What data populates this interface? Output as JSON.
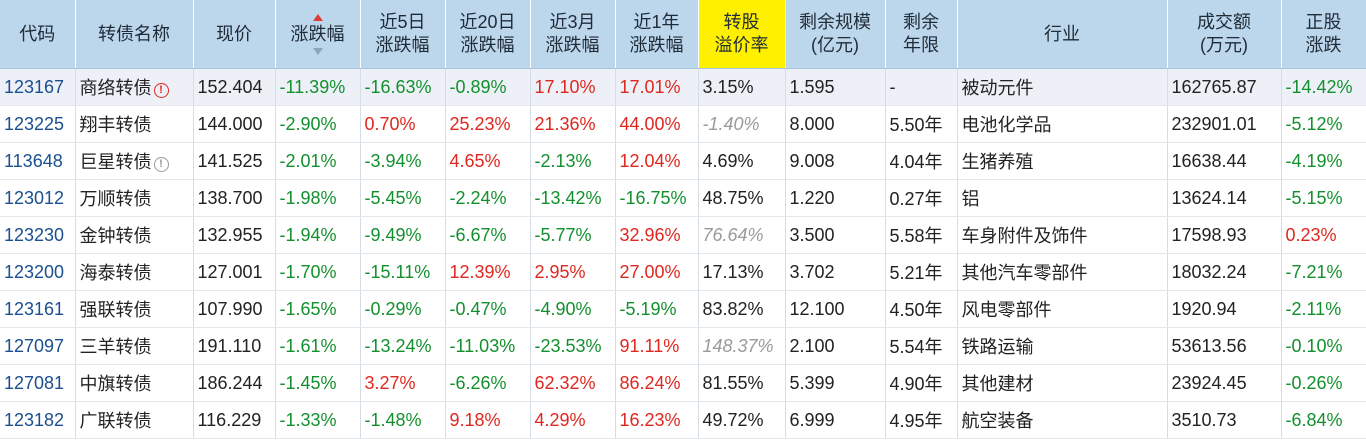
{
  "headers": [
    {
      "label": [
        "代码"
      ]
    },
    {
      "label": [
        "转债名称"
      ]
    },
    {
      "label": [
        "现价"
      ]
    },
    {
      "label": [
        "涨跌幅"
      ],
      "sorted": "desc"
    },
    {
      "label": [
        "近5日",
        "涨跌幅"
      ]
    },
    {
      "label": [
        "近20日",
        "涨跌幅"
      ]
    },
    {
      "label": [
        "近3月",
        "涨跌幅"
      ]
    },
    {
      "label": [
        "近1年",
        "涨跌幅"
      ]
    },
    {
      "label": [
        "转股",
        "溢价率"
      ],
      "highlight": true
    },
    {
      "label": [
        "剩余规模",
        "(亿元)"
      ]
    },
    {
      "label": [
        "剩余",
        "年限"
      ]
    },
    {
      "label": [
        "行业"
      ]
    },
    {
      "label": [
        "成交额",
        "(万元)"
      ]
    },
    {
      "label": [
        "正股",
        "涨跌"
      ]
    }
  ],
  "rows": [
    {
      "code": "123167",
      "name": "商络转债",
      "warn": "red",
      "price": "152.404",
      "chg": "-11.39%",
      "chg5": "-16.63%",
      "chg20": "-0.89%",
      "chg3m": "17.10%",
      "chg1y": "17.01%",
      "premium": "3.15%",
      "premium_muted": false,
      "scale": "1.595",
      "years": "-",
      "industry": "被动元件",
      "turnover": "162765.87",
      "stock_chg": "-14.42%"
    },
    {
      "code": "123225",
      "name": "翔丰转债",
      "warn": "",
      "price": "144.000",
      "chg": "-2.90%",
      "chg5": "0.70%",
      "chg20": "25.23%",
      "chg3m": "21.36%",
      "chg1y": "44.00%",
      "premium": "-1.40%",
      "premium_muted": true,
      "scale": "8.000",
      "years": "5.50年",
      "industry": "电池化学品",
      "turnover": "232901.01",
      "stock_chg": "-5.12%"
    },
    {
      "code": "113648",
      "name": "巨星转债",
      "warn": "gray",
      "price": "141.525",
      "chg": "-2.01%",
      "chg5": "-3.94%",
      "chg20": "4.65%",
      "chg3m": "-2.13%",
      "chg1y": "12.04%",
      "premium": "4.69%",
      "premium_muted": false,
      "scale": "9.008",
      "years": "4.04年",
      "industry": "生猪养殖",
      "turnover": "16638.44",
      "stock_chg": "-4.19%"
    },
    {
      "code": "123012",
      "name": "万顺转债",
      "warn": "",
      "price": "138.700",
      "chg": "-1.98%",
      "chg5": "-5.45%",
      "chg20": "-2.24%",
      "chg3m": "-13.42%",
      "chg1y": "-16.75%",
      "premium": "48.75%",
      "premium_muted": false,
      "scale": "1.220",
      "years": "0.27年",
      "industry": "铝",
      "turnover": "13624.14",
      "stock_chg": "-5.15%"
    },
    {
      "code": "123230",
      "name": "金钟转债",
      "warn": "",
      "price": "132.955",
      "chg": "-1.94%",
      "chg5": "-9.49%",
      "chg20": "-6.67%",
      "chg3m": "-5.77%",
      "chg1y": "32.96%",
      "premium": "76.64%",
      "premium_muted": true,
      "scale": "3.500",
      "years": "5.58年",
      "industry": "车身附件及饰件",
      "turnover": "17598.93",
      "stock_chg": "0.23%"
    },
    {
      "code": "123200",
      "name": "海泰转债",
      "warn": "",
      "price": "127.001",
      "chg": "-1.70%",
      "chg5": "-15.11%",
      "chg20": "12.39%",
      "chg3m": "2.95%",
      "chg1y": "27.00%",
      "premium": "17.13%",
      "premium_muted": false,
      "scale": "3.702",
      "years": "5.21年",
      "industry": "其他汽车零部件",
      "turnover": "18032.24",
      "stock_chg": "-7.21%"
    },
    {
      "code": "123161",
      "name": "强联转债",
      "warn": "",
      "price": "107.990",
      "chg": "-1.65%",
      "chg5": "-0.29%",
      "chg20": "-0.47%",
      "chg3m": "-4.90%",
      "chg1y": "-5.19%",
      "premium": "83.82%",
      "premium_muted": false,
      "scale": "12.100",
      "years": "4.50年",
      "industry": "风电零部件",
      "turnover": "1920.94",
      "stock_chg": "-2.11%"
    },
    {
      "code": "127097",
      "name": "三羊转债",
      "warn": "",
      "price": "191.110",
      "chg": "-1.61%",
      "chg5": "-13.24%",
      "chg20": "-11.03%",
      "chg3m": "-23.53%",
      "chg1y": "91.11%",
      "premium": "148.37%",
      "premium_muted": true,
      "scale": "2.100",
      "years": "5.54年",
      "industry": "铁路运输",
      "turnover": "53613.56",
      "stock_chg": "-0.10%"
    },
    {
      "code": "127081",
      "name": "中旗转债",
      "warn": "",
      "price": "186.244",
      "chg": "-1.45%",
      "chg5": "3.27%",
      "chg20": "-6.26%",
      "chg3m": "62.32%",
      "chg1y": "86.24%",
      "premium": "81.55%",
      "premium_muted": false,
      "scale": "5.399",
      "years": "4.90年",
      "industry": "其他建材",
      "turnover": "23924.45",
      "stock_chg": "-0.26%"
    },
    {
      "code": "123182",
      "name": "广联转债",
      "warn": "",
      "price": "116.229",
      "chg": "-1.33%",
      "chg5": "-1.48%",
      "chg20": "9.18%",
      "chg3m": "4.29%",
      "chg1y": "16.23%",
      "premium": "49.72%",
      "premium_muted": false,
      "scale": "6.999",
      "years": "4.95年",
      "industry": "航空装备",
      "turnover": "3510.73",
      "stock_chg": "-6.84%"
    }
  ]
}
